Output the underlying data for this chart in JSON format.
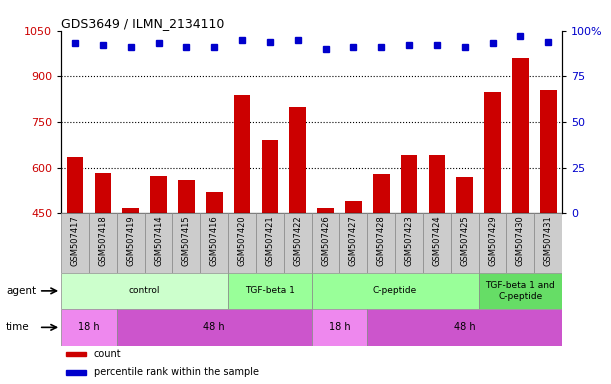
{
  "title": "GDS3649 / ILMN_2134110",
  "samples": [
    "GSM507417",
    "GSM507418",
    "GSM507419",
    "GSM507414",
    "GSM507415",
    "GSM507416",
    "GSM507420",
    "GSM507421",
    "GSM507422",
    "GSM507426",
    "GSM507427",
    "GSM507428",
    "GSM507423",
    "GSM507424",
    "GSM507425",
    "GSM507429",
    "GSM507430",
    "GSM507431"
  ],
  "counts": [
    635,
    583,
    468,
    572,
    558,
    520,
    840,
    690,
    800,
    468,
    490,
    578,
    640,
    640,
    568,
    850,
    960,
    855
  ],
  "percentile_ranks": [
    93,
    92,
    91,
    93,
    91,
    91,
    95,
    94,
    95,
    90,
    91,
    91,
    92,
    92,
    91,
    93,
    97,
    94
  ],
  "ylim_left": [
    450,
    1050
  ],
  "ylim_right": [
    0,
    100
  ],
  "yticks_left": [
    450,
    600,
    750,
    900,
    1050
  ],
  "yticks_right": [
    0,
    25,
    50,
    75,
    100
  ],
  "bar_color": "#cc0000",
  "dot_color": "#0000cc",
  "agent_groups": [
    {
      "label": "control",
      "start": 0,
      "end": 6,
      "color": "#ccffcc"
    },
    {
      "label": "TGF-beta 1",
      "start": 6,
      "end": 9,
      "color": "#99ff99"
    },
    {
      "label": "C-peptide",
      "start": 9,
      "end": 15,
      "color": "#99ff99"
    },
    {
      "label": "TGF-beta 1 and\nC-peptide",
      "start": 15,
      "end": 18,
      "color": "#66dd66"
    }
  ],
  "time_groups": [
    {
      "label": "18 h",
      "start": 0,
      "end": 2,
      "color": "#ee88ee"
    },
    {
      "label": "48 h",
      "start": 2,
      "end": 9,
      "color": "#cc55cc"
    },
    {
      "label": "18 h",
      "start": 9,
      "end": 11,
      "color": "#ee88ee"
    },
    {
      "label": "48 h",
      "start": 11,
      "end": 18,
      "color": "#cc55cc"
    }
  ],
  "tick_bg_color": "#cccccc",
  "legend_items": [
    {
      "label": "count",
      "color": "#cc0000"
    },
    {
      "label": "percentile rank within the sample",
      "color": "#0000cc"
    }
  ]
}
